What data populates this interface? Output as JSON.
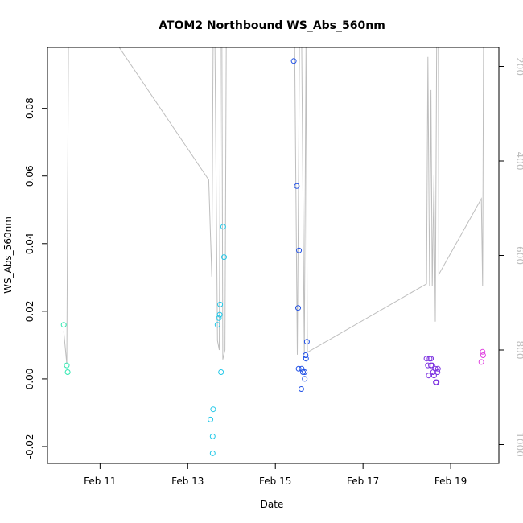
{
  "chart_data": {
    "type": "scatter",
    "title": "ATOM2 Northbound WS_Abs_560nm",
    "xlabel": "Date",
    "ylabel": "WS_Abs_560nm",
    "x_unit": "days since Feb 10 00:00",
    "xlim": [
      -0.2,
      10.1
    ],
    "ylim": [
      -0.025,
      0.098
    ],
    "x_ticks": [
      {
        "value": 1,
        "label": "Feb 11"
      },
      {
        "value": 3,
        "label": "Feb 13"
      },
      {
        "value": 5,
        "label": "Feb 15"
      },
      {
        "value": 7,
        "label": "Feb 17"
      },
      {
        "value": 9,
        "label": "Feb 19"
      }
    ],
    "y_ticks": [
      {
        "value": -0.02,
        "label": "-0.02"
      },
      {
        "value": 0.0,
        "label": "0.00"
      },
      {
        "value": 0.02,
        "label": "0.02"
      },
      {
        "value": 0.04,
        "label": "0.04"
      },
      {
        "value": 0.06,
        "label": "0.06"
      },
      {
        "value": 0.08,
        "label": "0.08"
      }
    ],
    "y2_axis": {
      "description": "depth (reversed)",
      "range": [
        1040,
        160
      ],
      "ticks": [
        {
          "value": 200,
          "label": "200"
        },
        {
          "value": 400,
          "label": "400"
        },
        {
          "value": 600,
          "label": "600"
        },
        {
          "value": 800,
          "label": "800"
        },
        {
          "value": 1000,
          "label": "1000"
        }
      ],
      "line_color": "#bebebe"
    },
    "points": [
      {
        "x": 0.17,
        "y": 0.016,
        "color": "#2ee8b0"
      },
      {
        "x": 0.24,
        "y": 0.004,
        "color": "#2ee8b0"
      },
      {
        "x": 0.26,
        "y": 0.002,
        "color": "#2ee8b0"
      },
      {
        "x": 3.52,
        "y": -0.012,
        "color": "#22c8e8"
      },
      {
        "x": 3.57,
        "y": -0.017,
        "color": "#22c8e8"
      },
      {
        "x": 3.58,
        "y": -0.009,
        "color": "#22c8e8"
      },
      {
        "x": 3.57,
        "y": -0.022,
        "color": "#22c8e8"
      },
      {
        "x": 3.68,
        "y": 0.016,
        "color": "#22c8e8"
      },
      {
        "x": 3.71,
        "y": 0.018,
        "color": "#22c8e8"
      },
      {
        "x": 3.73,
        "y": 0.019,
        "color": "#22c8e8"
      },
      {
        "x": 3.74,
        "y": 0.022,
        "color": "#22c8e8"
      },
      {
        "x": 3.76,
        "y": 0.002,
        "color": "#22c8e8"
      },
      {
        "x": 3.81,
        "y": 0.045,
        "color": "#22c8e8"
      },
      {
        "x": 3.83,
        "y": 0.036,
        "color": "#22c8e8"
      },
      {
        "x": 5.42,
        "y": 0.094,
        "color": "#1e4fe6"
      },
      {
        "x": 5.49,
        "y": 0.057,
        "color": "#1e4fe6"
      },
      {
        "x": 5.54,
        "y": 0.038,
        "color": "#1e4fe6"
      },
      {
        "x": 5.52,
        "y": 0.021,
        "color": "#1e4fe6"
      },
      {
        "x": 5.53,
        "y": 0.003,
        "color": "#1e4fe6"
      },
      {
        "x": 5.6,
        "y": 0.003,
        "color": "#1e4fe6"
      },
      {
        "x": 5.59,
        "y": -0.003,
        "color": "#1e4fe6"
      },
      {
        "x": 5.63,
        "y": 0.002,
        "color": "#1e4fe6"
      },
      {
        "x": 5.67,
        "y": 0.002,
        "color": "#1e4fe6"
      },
      {
        "x": 5.67,
        "y": 0.0,
        "color": "#1e4fe6"
      },
      {
        "x": 5.69,
        "y": 0.007,
        "color": "#1e4fe6"
      },
      {
        "x": 5.7,
        "y": 0.006,
        "color": "#1e4fe6"
      },
      {
        "x": 5.72,
        "y": 0.011,
        "color": "#1e4fe6"
      },
      {
        "x": 8.45,
        "y": 0.006,
        "color": "#7b2fe0"
      },
      {
        "x": 8.48,
        "y": 0.004,
        "color": "#7b2fe0"
      },
      {
        "x": 8.5,
        "y": 0.001,
        "color": "#7b2fe0"
      },
      {
        "x": 8.52,
        "y": 0.006,
        "color": "#7b2fe0"
      },
      {
        "x": 8.55,
        "y": 0.006,
        "color": "#7b2fe0"
      },
      {
        "x": 8.55,
        "y": 0.004,
        "color": "#7b2fe0"
      },
      {
        "x": 8.58,
        "y": 0.004,
        "color": "#7b2fe0"
      },
      {
        "x": 8.6,
        "y": 0.002,
        "color": "#7b2fe0"
      },
      {
        "x": 8.62,
        "y": 0.001,
        "color": "#7b2fe0"
      },
      {
        "x": 8.65,
        "y": 0.003,
        "color": "#7b2fe0"
      },
      {
        "x": 8.66,
        "y": -0.001,
        "color": "#7b2fe0"
      },
      {
        "x": 8.68,
        "y": -0.001,
        "color": "#7b2fe0"
      },
      {
        "x": 8.7,
        "y": 0.002,
        "color": "#7b2fe0"
      },
      {
        "x": 8.71,
        "y": 0.003,
        "color": "#7b2fe0"
      },
      {
        "x": 9.7,
        "y": 0.005,
        "color": "#e040e0"
      },
      {
        "x": 9.74,
        "y": 0.007,
        "color": "#e040e0"
      },
      {
        "x": 9.73,
        "y": 0.008,
        "color": "#e040e0"
      }
    ],
    "depth_line": [
      {
        "x": 0.17,
        "d": 760
      },
      {
        "x": 0.24,
        "d": 830
      },
      {
        "x": 0.28,
        "d": 150
      },
      {
        "x": 0.32,
        "d": 150
      },
      {
        "x": 0.33,
        "d": 100
      },
      {
        "x": 1.0,
        "d": 100
      },
      {
        "x": 3.48,
        "d": 440
      },
      {
        "x": 3.55,
        "d": 645
      },
      {
        "x": 3.58,
        "d": 150
      },
      {
        "x": 3.62,
        "d": 150
      },
      {
        "x": 3.68,
        "d": 780
      },
      {
        "x": 3.72,
        "d": 800
      },
      {
        "x": 3.75,
        "d": 150
      },
      {
        "x": 3.78,
        "d": 150
      },
      {
        "x": 3.8,
        "d": 820
      },
      {
        "x": 3.85,
        "d": 800
      },
      {
        "x": 3.88,
        "d": 150
      },
      {
        "x": 3.92,
        "d": 150
      },
      {
        "x": 5.41,
        "d": 150
      },
      {
        "x": 5.44,
        "d": 150
      },
      {
        "x": 5.5,
        "d": 810
      },
      {
        "x": 5.55,
        "d": 150
      },
      {
        "x": 5.6,
        "d": 150
      },
      {
        "x": 5.66,
        "d": 810
      },
      {
        "x": 5.7,
        "d": 150
      },
      {
        "x": 5.73,
        "d": 805
      },
      {
        "x": 8.45,
        "d": 660
      },
      {
        "x": 8.48,
        "d": 180
      },
      {
        "x": 8.52,
        "d": 665
      },
      {
        "x": 8.55,
        "d": 250
      },
      {
        "x": 8.58,
        "d": 665
      },
      {
        "x": 8.62,
        "d": 430
      },
      {
        "x": 8.65,
        "d": 740
      },
      {
        "x": 8.68,
        "d": 150
      },
      {
        "x": 8.72,
        "d": 150
      },
      {
        "x": 8.73,
        "d": 640
      },
      {
        "x": 9.7,
        "d": 480
      },
      {
        "x": 9.73,
        "d": 665
      },
      {
        "x": 9.75,
        "d": 150
      }
    ]
  }
}
